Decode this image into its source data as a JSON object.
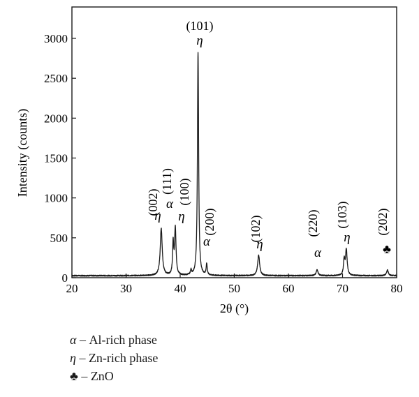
{
  "chart_data": {
    "type": "line",
    "xlabel": "2θ (°)",
    "ylabel": "Intensity (counts)",
    "xlim": [
      20,
      80
    ],
    "ylim": [
      0,
      3000
    ],
    "xticks": [
      20,
      30,
      40,
      50,
      60,
      70,
      80
    ],
    "yticks": [
      0,
      500,
      1000,
      1500,
      2000,
      2500,
      3000
    ],
    "grid": false,
    "baseline": 25,
    "peaks": [
      {
        "x": 36.5,
        "y": 590,
        "w": 0.22
      },
      {
        "x": 38.7,
        "y": 390,
        "w": 0.12
      },
      {
        "x": 39.1,
        "y": 590,
        "w": 0.16
      },
      {
        "x": 42.0,
        "y": 60,
        "w": 0.12
      },
      {
        "x": 43.3,
        "y": 2800,
        "w": 0.13
      },
      {
        "x": 44.9,
        "y": 140,
        "w": 0.12
      },
      {
        "x": 54.5,
        "y": 260,
        "w": 0.22
      },
      {
        "x": 65.3,
        "y": 75,
        "w": 0.2
      },
      {
        "x": 70.3,
        "y": 190,
        "w": 0.15
      },
      {
        "x": 70.7,
        "y": 320,
        "w": 0.18
      },
      {
        "x": 78.3,
        "y": 70,
        "w": 0.2
      }
    ],
    "annotations": [
      {
        "hkl": "(002)",
        "phase": "η",
        "x": 36.5
      },
      {
        "hkl": "(111)",
        "phase": "α",
        "x": 38.7
      },
      {
        "hkl": "(100)",
        "phase": "η",
        "x": 39.1
      },
      {
        "hkl": "(101)",
        "phase": "η",
        "x": 43.3
      },
      {
        "hkl": "(200)",
        "phase": "α",
        "x": 44.9
      },
      {
        "hkl": "(102)",
        "phase": "η",
        "x": 54.5
      },
      {
        "hkl": "(220)",
        "phase": "α",
        "x": 65.3
      },
      {
        "hkl": "(103)",
        "phase": "η",
        "x": 70.6
      },
      {
        "hkl": "(202)",
        "phase": "♣",
        "x": 78.3
      }
    ]
  },
  "legend": [
    {
      "symbol": "α",
      "text": " – Al-rich phase"
    },
    {
      "symbol": "η",
      "text": " – Zn-rich phase"
    },
    {
      "symbol": "♣",
      "text": " – ZnO"
    }
  ]
}
